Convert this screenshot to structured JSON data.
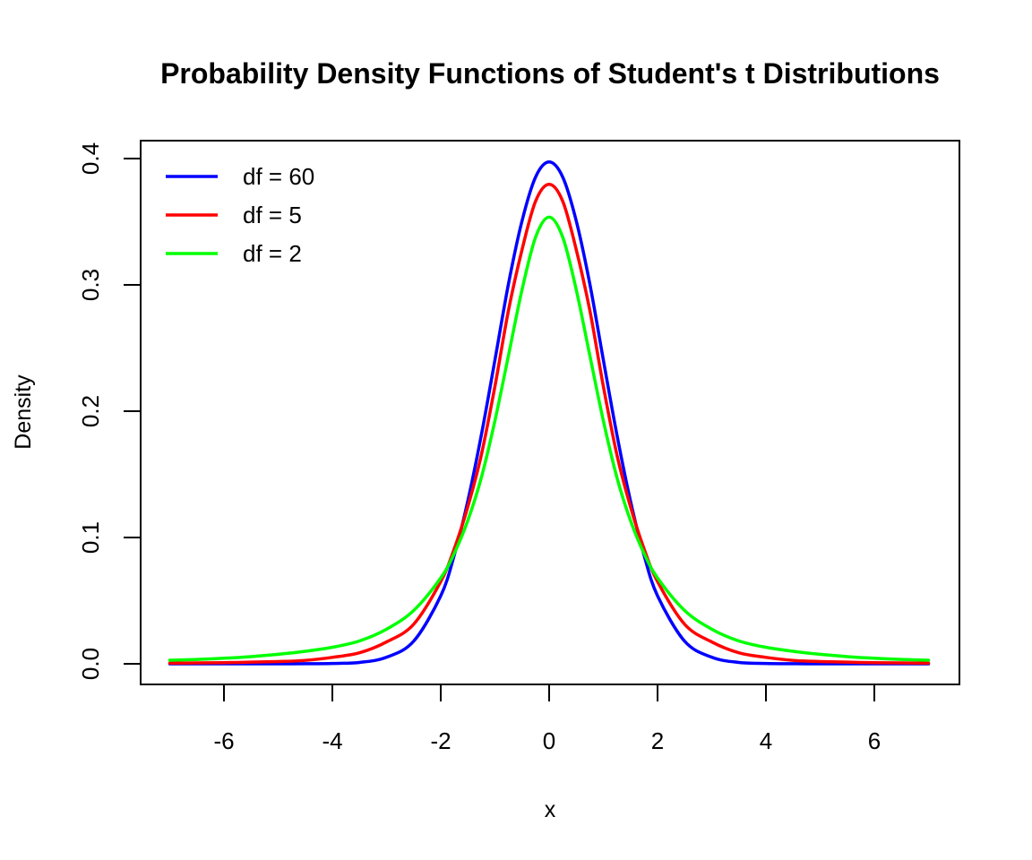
{
  "chart_data": {
    "type": "line",
    "title": "Probability Density Functions of Student's t Distributions",
    "xlabel": "x",
    "ylabel": "Density",
    "xlim": [
      -7,
      7
    ],
    "ylim": [
      0,
      0.4
    ],
    "x_ticks": [
      -6,
      -4,
      -2,
      0,
      2,
      4,
      6
    ],
    "x_tick_labels": [
      "-6",
      "-4",
      "-2",
      "0",
      "2",
      "4",
      "6"
    ],
    "y_ticks": [
      0.0,
      0.1,
      0.2,
      0.3,
      0.4
    ],
    "y_tick_labels": [
      "0.0",
      "0.1",
      "0.2",
      "0.3",
      "0.4"
    ],
    "grid": false,
    "legend_position": "top-left",
    "x": [
      -7,
      -6.5,
      -6,
      -5.5,
      -5,
      -4.5,
      -4,
      -3.5,
      -3,
      -2.5,
      -2,
      -1.75,
      -1.5,
      -1.25,
      -1,
      -0.75,
      -0.5,
      -0.25,
      0,
      0.25,
      0.5,
      0.75,
      1,
      1.25,
      1.5,
      1.75,
      2,
      2.5,
      3,
      3.5,
      4,
      4.5,
      5,
      5.5,
      6,
      6.5,
      7
    ],
    "series": [
      {
        "name": "df = 60",
        "color": "#0000ff",
        "values": [
          0.0,
          0.0,
          0.0,
          0.0,
          0.0,
          0.0001,
          0.0003,
          0.0011,
          0.0052,
          0.0179,
          0.0538,
          0.0862,
          0.1291,
          0.1814,
          0.2406,
          0.3009,
          0.3507,
          0.3854,
          0.3973,
          0.3854,
          0.3507,
          0.3009,
          0.2406,
          0.1814,
          0.1291,
          0.0862,
          0.0538,
          0.0179,
          0.0052,
          0.0011,
          0.0003,
          0.0001,
          0.0,
          0.0,
          0.0,
          0.0,
          0.0
        ]
      },
      {
        "name": "df = 5",
        "color": "#ff0000",
        "values": [
          0.0005,
          0.0007,
          0.0009,
          0.0013,
          0.0018,
          0.0027,
          0.0051,
          0.0087,
          0.0173,
          0.0313,
          0.0651,
          0.0912,
          0.1245,
          0.1656,
          0.2197,
          0.2799,
          0.3279,
          0.3663,
          0.3796,
          0.3663,
          0.3279,
          0.2799,
          0.2197,
          0.1656,
          0.1245,
          0.0912,
          0.0651,
          0.0313,
          0.0173,
          0.0087,
          0.0051,
          0.0027,
          0.0018,
          0.0013,
          0.0009,
          0.0007,
          0.0005
        ]
      },
      {
        "name": "df = 2",
        "color": "#00ff00",
        "values": [
          0.0028,
          0.0035,
          0.0044,
          0.0057,
          0.0075,
          0.0099,
          0.0131,
          0.0181,
          0.0274,
          0.0422,
          0.068,
          0.0875,
          0.1135,
          0.1476,
          0.1925,
          0.2442,
          0.2962,
          0.3378,
          0.3536,
          0.3378,
          0.2962,
          0.2442,
          0.1925,
          0.1476,
          0.1135,
          0.0875,
          0.068,
          0.0422,
          0.0274,
          0.0181,
          0.0131,
          0.0099,
          0.0075,
          0.0057,
          0.0044,
          0.0035,
          0.0028
        ]
      }
    ]
  }
}
